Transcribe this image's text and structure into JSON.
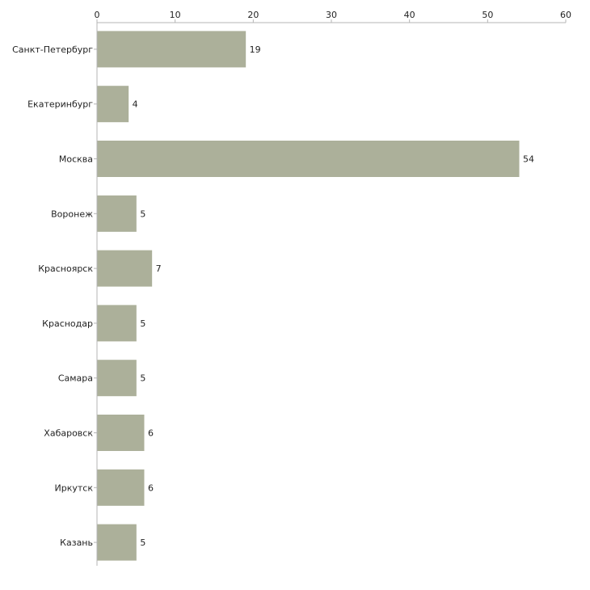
{
  "chart_data": {
    "type": "bar",
    "orientation": "horizontal",
    "categories": [
      "Санкт-Петербург",
      "Екатеринбург",
      "Москва",
      "Воронеж",
      "Красноярск",
      "Краснодар",
      "Самара",
      "Хабаровск",
      "Иркутск",
      "Казань"
    ],
    "values": [
      19,
      4,
      54,
      5,
      7,
      5,
      5,
      6,
      6,
      5
    ],
    "xlim": [
      0,
      60
    ],
    "x_ticks": [
      0,
      10,
      20,
      30,
      40,
      50,
      60
    ],
    "x_tick_labels": [
      "0",
      "10",
      "20",
      "30",
      "40",
      "50",
      "60"
    ],
    "value_labels": [
      "19",
      "4",
      "54",
      "5",
      "7",
      "5",
      "5",
      "6",
      "6",
      "5"
    ],
    "axis_position": "top",
    "grid": false,
    "legend": "none",
    "title": "",
    "xlabel": "",
    "ylabel": ""
  },
  "colors": {
    "bar": "#acb09a",
    "axis": "#b5b5b5",
    "text": "#222222"
  }
}
